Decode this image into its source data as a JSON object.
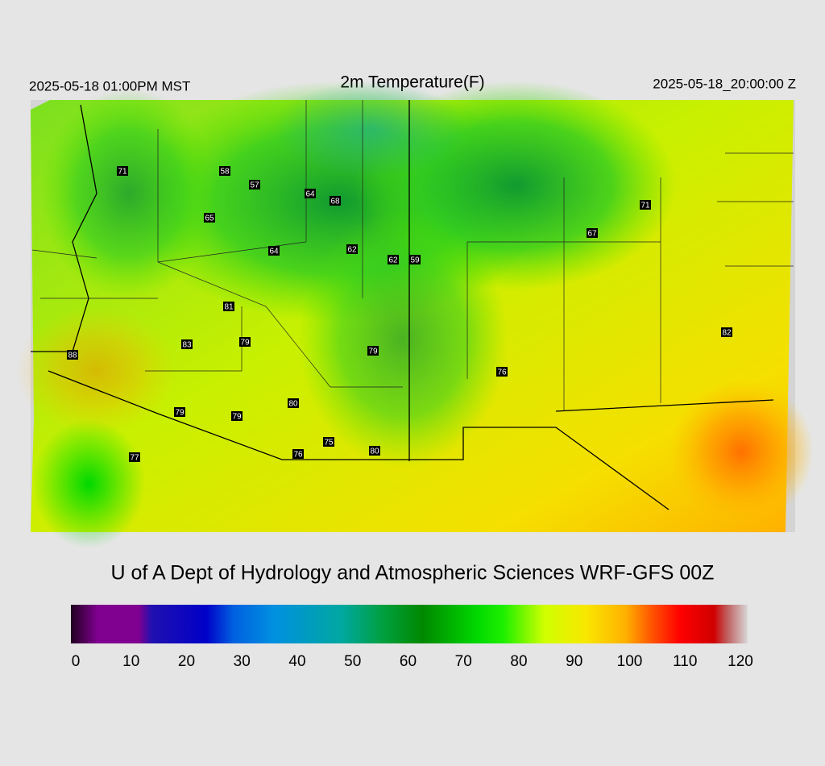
{
  "header": {
    "left": "2025-05-18 01:00PM MST",
    "title": "2m Temperature(F)",
    "right": "2025-05-18_20:00:00 Z"
  },
  "stations": [
    71,
    58,
    57,
    64,
    68,
    65,
    64,
    62,
    62,
    59,
    67,
    71,
    81,
    83,
    79,
    79,
    88,
    82,
    76,
    80,
    79,
    79,
    75,
    76,
    80,
    77
  ],
  "credit": "U of A Dept of Hydrology and Atmospheric Sciences WRF-GFS 00Z",
  "colorbar": {
    "lim": [
      0,
      120
    ],
    "ticks": [
      0,
      10,
      20,
      30,
      40,
      50,
      60,
      70,
      80,
      90,
      100,
      110,
      120
    ]
  }
}
